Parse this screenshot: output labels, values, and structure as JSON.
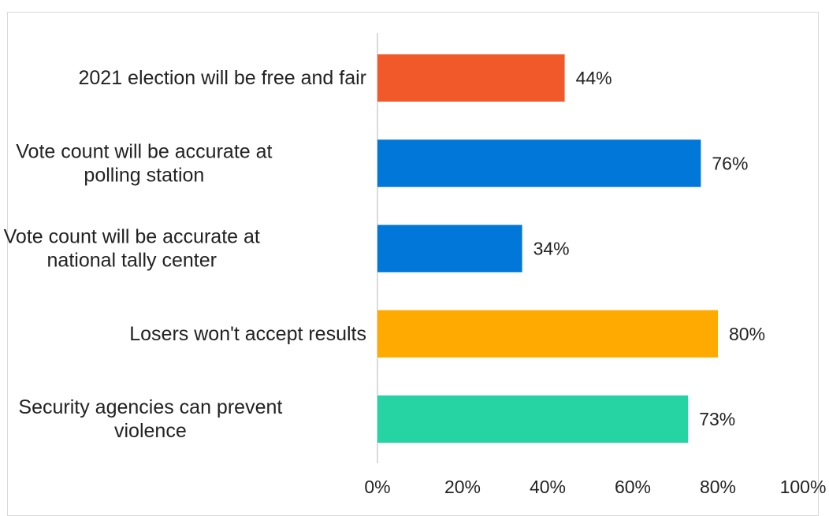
{
  "chart_data": {
    "type": "bar",
    "orientation": "horizontal",
    "categories": [
      "2021 election will be free and fair",
      "Vote count will be accurate at polling station",
      "Vote count will be accurate at national tally center",
      "Losers won't accept results",
      "Security agencies can prevent violence"
    ],
    "category_lines": [
      [
        "2021 election will be free and fair"
      ],
      [
        "Vote count will be accurate at",
        "polling station"
      ],
      [
        "Vote count will be accurate at",
        "national tally center"
      ],
      [
        "Losers won't accept results"
      ],
      [
        "Security agencies can prevent",
        "violence"
      ]
    ],
    "values": [
      44,
      76,
      34,
      80,
      73
    ],
    "value_labels": [
      "44%",
      "76%",
      "34%",
      "80%",
      "73%"
    ],
    "colors": [
      "#f2592a",
      "#0077d9",
      "#0077d9",
      "#ffaa00",
      "#25d3a3"
    ],
    "xlim": [
      0,
      100
    ],
    "x_ticks": [
      0,
      20,
      40,
      60,
      80,
      100
    ],
    "x_tick_labels": [
      "0%",
      "20%",
      "40%",
      "60%",
      "80%",
      "100%"
    ],
    "title": "",
    "xlabel": "",
    "ylabel": "",
    "grid": false,
    "legend": "none"
  }
}
